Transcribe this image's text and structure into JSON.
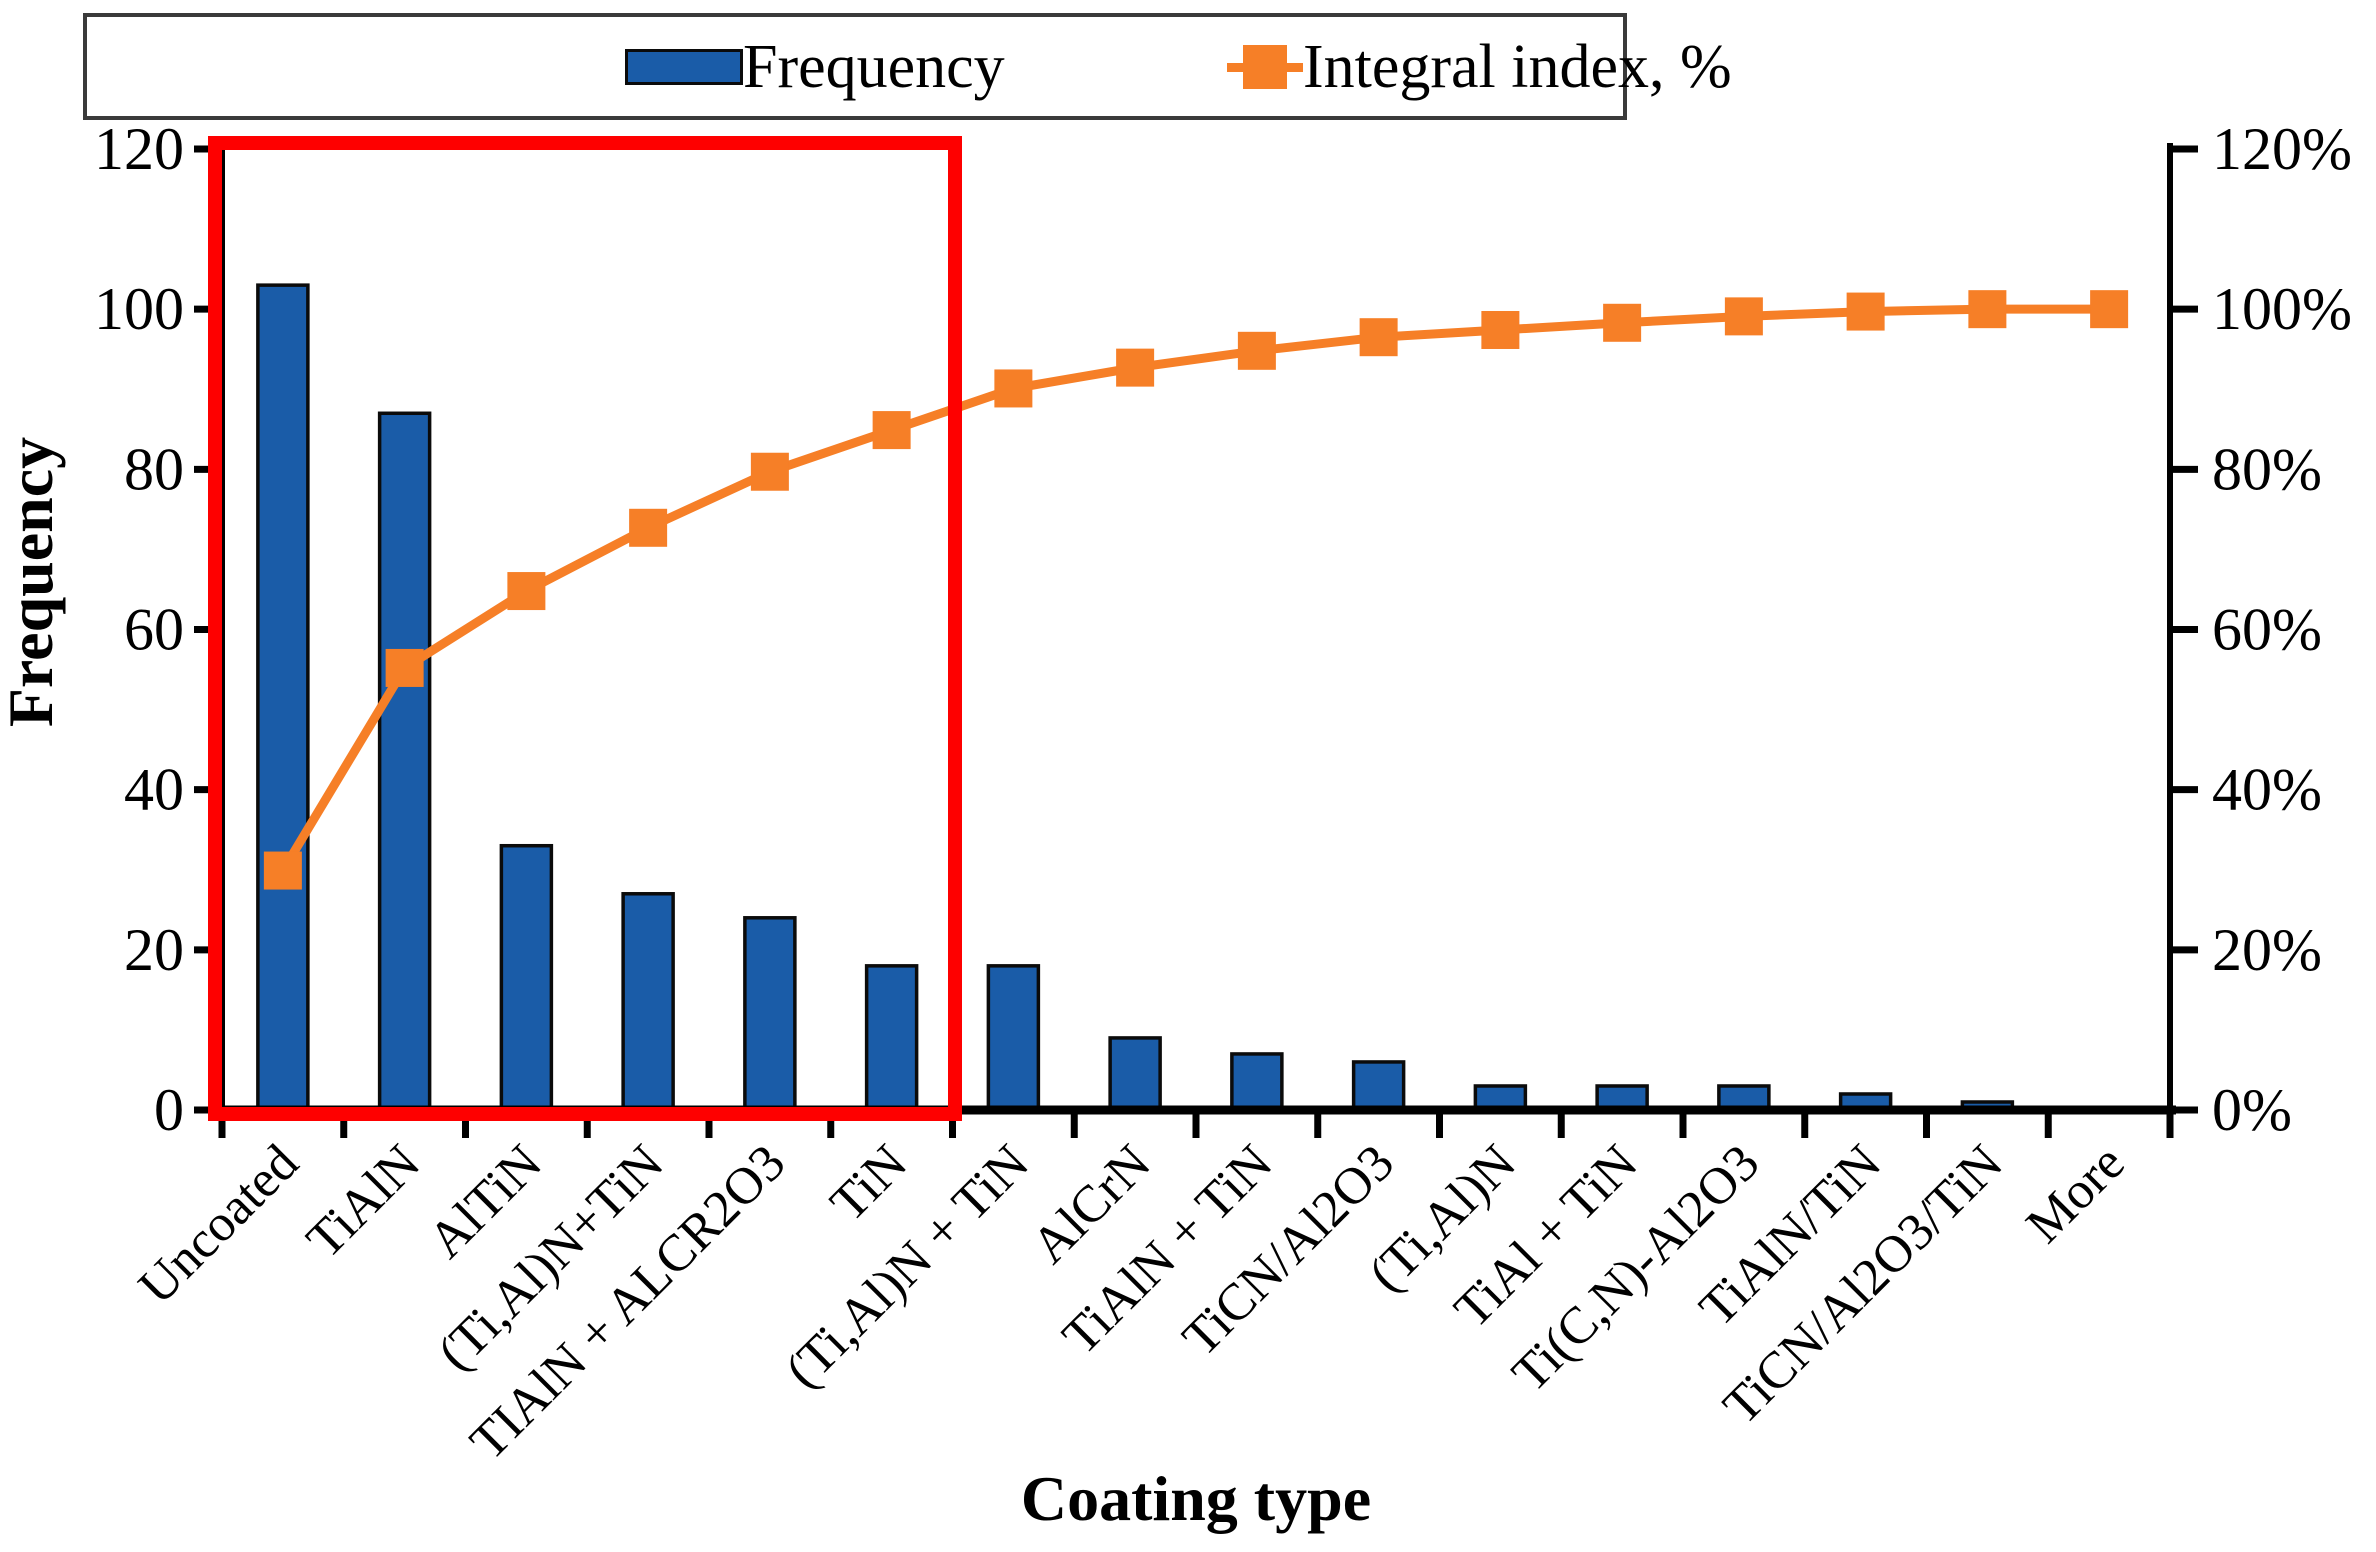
{
  "chart_data": {
    "type": "bar",
    "subtype": "pareto",
    "title": "",
    "xlabel": "Coating type",
    "ylabel_left": "Frequency",
    "ylabel_right": "Integral index, %",
    "categories": [
      "Uncoated",
      "TiAlN",
      "AlTiN",
      "(Ti,Al)N+TiN",
      "TIAlN + ALCR2O3",
      "TiN",
      "(Ti,Al)N + TiN",
      "AlCrN",
      "TiAlN + TiN",
      "TiCN/Al2O3",
      "(Ti,Al)N",
      "TiAl + TiN",
      "Ti(C,N)-Al2O3",
      "TiAlN/TiN",
      "TiCN/Al2O3/TiN",
      "More"
    ],
    "series": [
      {
        "name": "Frequency",
        "type": "bar",
        "axis": "left",
        "values": [
          103,
          87,
          33,
          27,
          24,
          18,
          18,
          9,
          7,
          6,
          3,
          3,
          3,
          2,
          1,
          0
        ]
      },
      {
        "name": "Integral index, %",
        "type": "line",
        "axis": "right",
        "values_pct": [
          29.9,
          55.2,
          64.8,
          72.7,
          79.7,
          84.9,
          90.1,
          92.7,
          94.8,
          96.5,
          97.4,
          98.3,
          99.1,
          99.7,
          100,
          100
        ]
      }
    ],
    "ylim_left": [
      0,
      120
    ],
    "ylim_right_pct": [
      0,
      120
    ],
    "left_ticks": [
      "0",
      "20",
      "40",
      "60",
      "80",
      "100",
      "120"
    ],
    "right_ticks": [
      "0%",
      "20%",
      "40%",
      "60%",
      "80%",
      "100%",
      "120%"
    ],
    "grid": false,
    "legend_position": "top",
    "annotation": {
      "red_box": "highlight rectangle around first six categories",
      "red_box_categories": [
        "Uncoated",
        "TiAlN",
        "AlTiN",
        "(Ti,Al)N+TiN",
        "TIAlN + ALCR2O3",
        "TiN"
      ]
    }
  },
  "legend": {
    "items": [
      {
        "label": "Frequency",
        "swatch": "bar-swatch"
      },
      {
        "label": "Integral index, %",
        "swatch": "line-marker-swatch"
      }
    ]
  },
  "titles": {
    "x_axis": "Coating type",
    "y_axis_left": "Frequency"
  },
  "colors": {
    "bar_fill": "#1A5CA8",
    "bar_stroke": "#0B0B0B",
    "line": "#F67F27",
    "highlight_box": "#FE0000",
    "axis": "#000000",
    "legend_border": "#3A3A3A",
    "background": "#FFFFFF"
  }
}
